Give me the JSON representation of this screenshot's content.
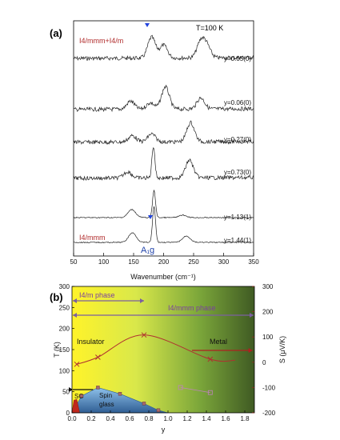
{
  "chart_data": [
    {
      "panel": "(a)",
      "type": "line",
      "xlabel": "Wavenumber (cm⁻¹)",
      "xlim": [
        50,
        350
      ],
      "xticks": [
        50,
        100,
        150,
        200,
        250,
        300,
        350
      ],
      "annotations": {
        "temperature": "T=100 K",
        "phase_top": "I4/mmm+I4/m",
        "phase_bottom": "I4/mmm",
        "mode": "A₁g"
      },
      "series": [
        {
          "name": "y=0.05(0)",
          "color": "#222222",
          "peaks": [
            {
              "x": 180,
              "h": 26
            },
            {
              "x": 200,
              "h": 16
            },
            {
              "x": 262,
              "h": 20
            },
            {
              "x": 272,
              "h": 14
            }
          ],
          "baseline": 0.08
        },
        {
          "name": "y=0.06(0)",
          "color": "#222222",
          "peaks": [
            {
              "x": 145,
              "h": 10
            },
            {
              "x": 178,
              "h": 8
            },
            {
              "x": 203,
              "h": 28
            },
            {
              "x": 262,
              "h": 14
            }
          ],
          "baseline": 0.06
        },
        {
          "name": "y=0.27(0)",
          "color": "#222222",
          "peaks": [
            {
              "x": 148,
              "h": 8
            },
            {
              "x": 180,
              "h": 10
            },
            {
              "x": 245,
              "h": 24
            }
          ],
          "baseline": 0.06
        },
        {
          "name": "y=0.73(0)",
          "color": "#222222",
          "peaks": [
            {
              "x": 140,
              "h": 8
            },
            {
              "x": 183,
              "h": 40
            },
            {
              "x": 243,
              "h": 22
            }
          ],
          "baseline": 0.06
        },
        {
          "name": "y=1.13(1)",
          "color": "#222222",
          "peaks": [
            {
              "x": 147,
              "h": 10
            },
            {
              "x": 184,
              "h": 34
            },
            {
              "x": 232,
              "h": 3
            }
          ],
          "baseline": 0.0
        },
        {
          "name": "y=1.44(1)",
          "color": "#222222",
          "peaks": [
            {
              "x": 148,
              "h": 12
            },
            {
              "x": 184,
              "h": 45
            },
            {
              "x": 238,
              "h": 8
            }
          ],
          "baseline": 0.0
        }
      ]
    },
    {
      "panel": "(b)",
      "type": "line",
      "xlabel": "y",
      "ylabel_left": "T (K)",
      "ylabel_right": "S (μV/K)",
      "xlim": [
        0.0,
        1.9
      ],
      "ylim_left": [
        0,
        300
      ],
      "ylim_right": [
        -200,
        300
      ],
      "xticks": [
        "0.0",
        "0.2",
        "0.4",
        "0.6",
        "0.8",
        "1.0",
        "1.2",
        "1.4",
        "1.6",
        "1.8"
      ],
      "yticks_left": [
        "0",
        "50",
        "100",
        "150",
        "200",
        "250",
        "300"
      ],
      "yticks_right": [
        "-200",
        "-100",
        "0",
        "100",
        "200",
        "300"
      ],
      "labels": {
        "i4m_phase": "I4/m phase",
        "i4mmm_phase": "I4/mmm phase",
        "insulator": "Insulator",
        "metal": "Metal",
        "sc": "SC",
        "spin_glass": "Spin\nglass"
      },
      "seebeck": {
        "name": "S",
        "color": "#b03030",
        "x": [
          0.05,
          0.27,
          0.75,
          1.44,
          1.7
        ],
        "y": [
          -8,
          20,
          108,
          12,
          8
        ]
      },
      "spin_glass_dome": {
        "name": "Tsg",
        "color": "#3a6fb0",
        "x": [
          0.0,
          0.1,
          0.27,
          0.5,
          0.75,
          0.9,
          1.0
        ],
        "y": [
          0,
          40,
          60,
          45,
          22,
          6,
          0
        ]
      },
      "pink_points": {
        "color": "#c080c0",
        "x": [
          1.13,
          1.44
        ],
        "y": [
          -100,
          -120
        ]
      },
      "sc_dome": {
        "x": [
          0.0,
          0.02,
          0.05,
          0.08
        ],
        "y": [
          0,
          30,
          32,
          0
        ]
      },
      "colors": {
        "yellow": "#f4ef2a",
        "green": "#4d6b2a",
        "phase_arrow": "#7b5fa0",
        "metal_arrow": "#b02020"
      }
    }
  ]
}
